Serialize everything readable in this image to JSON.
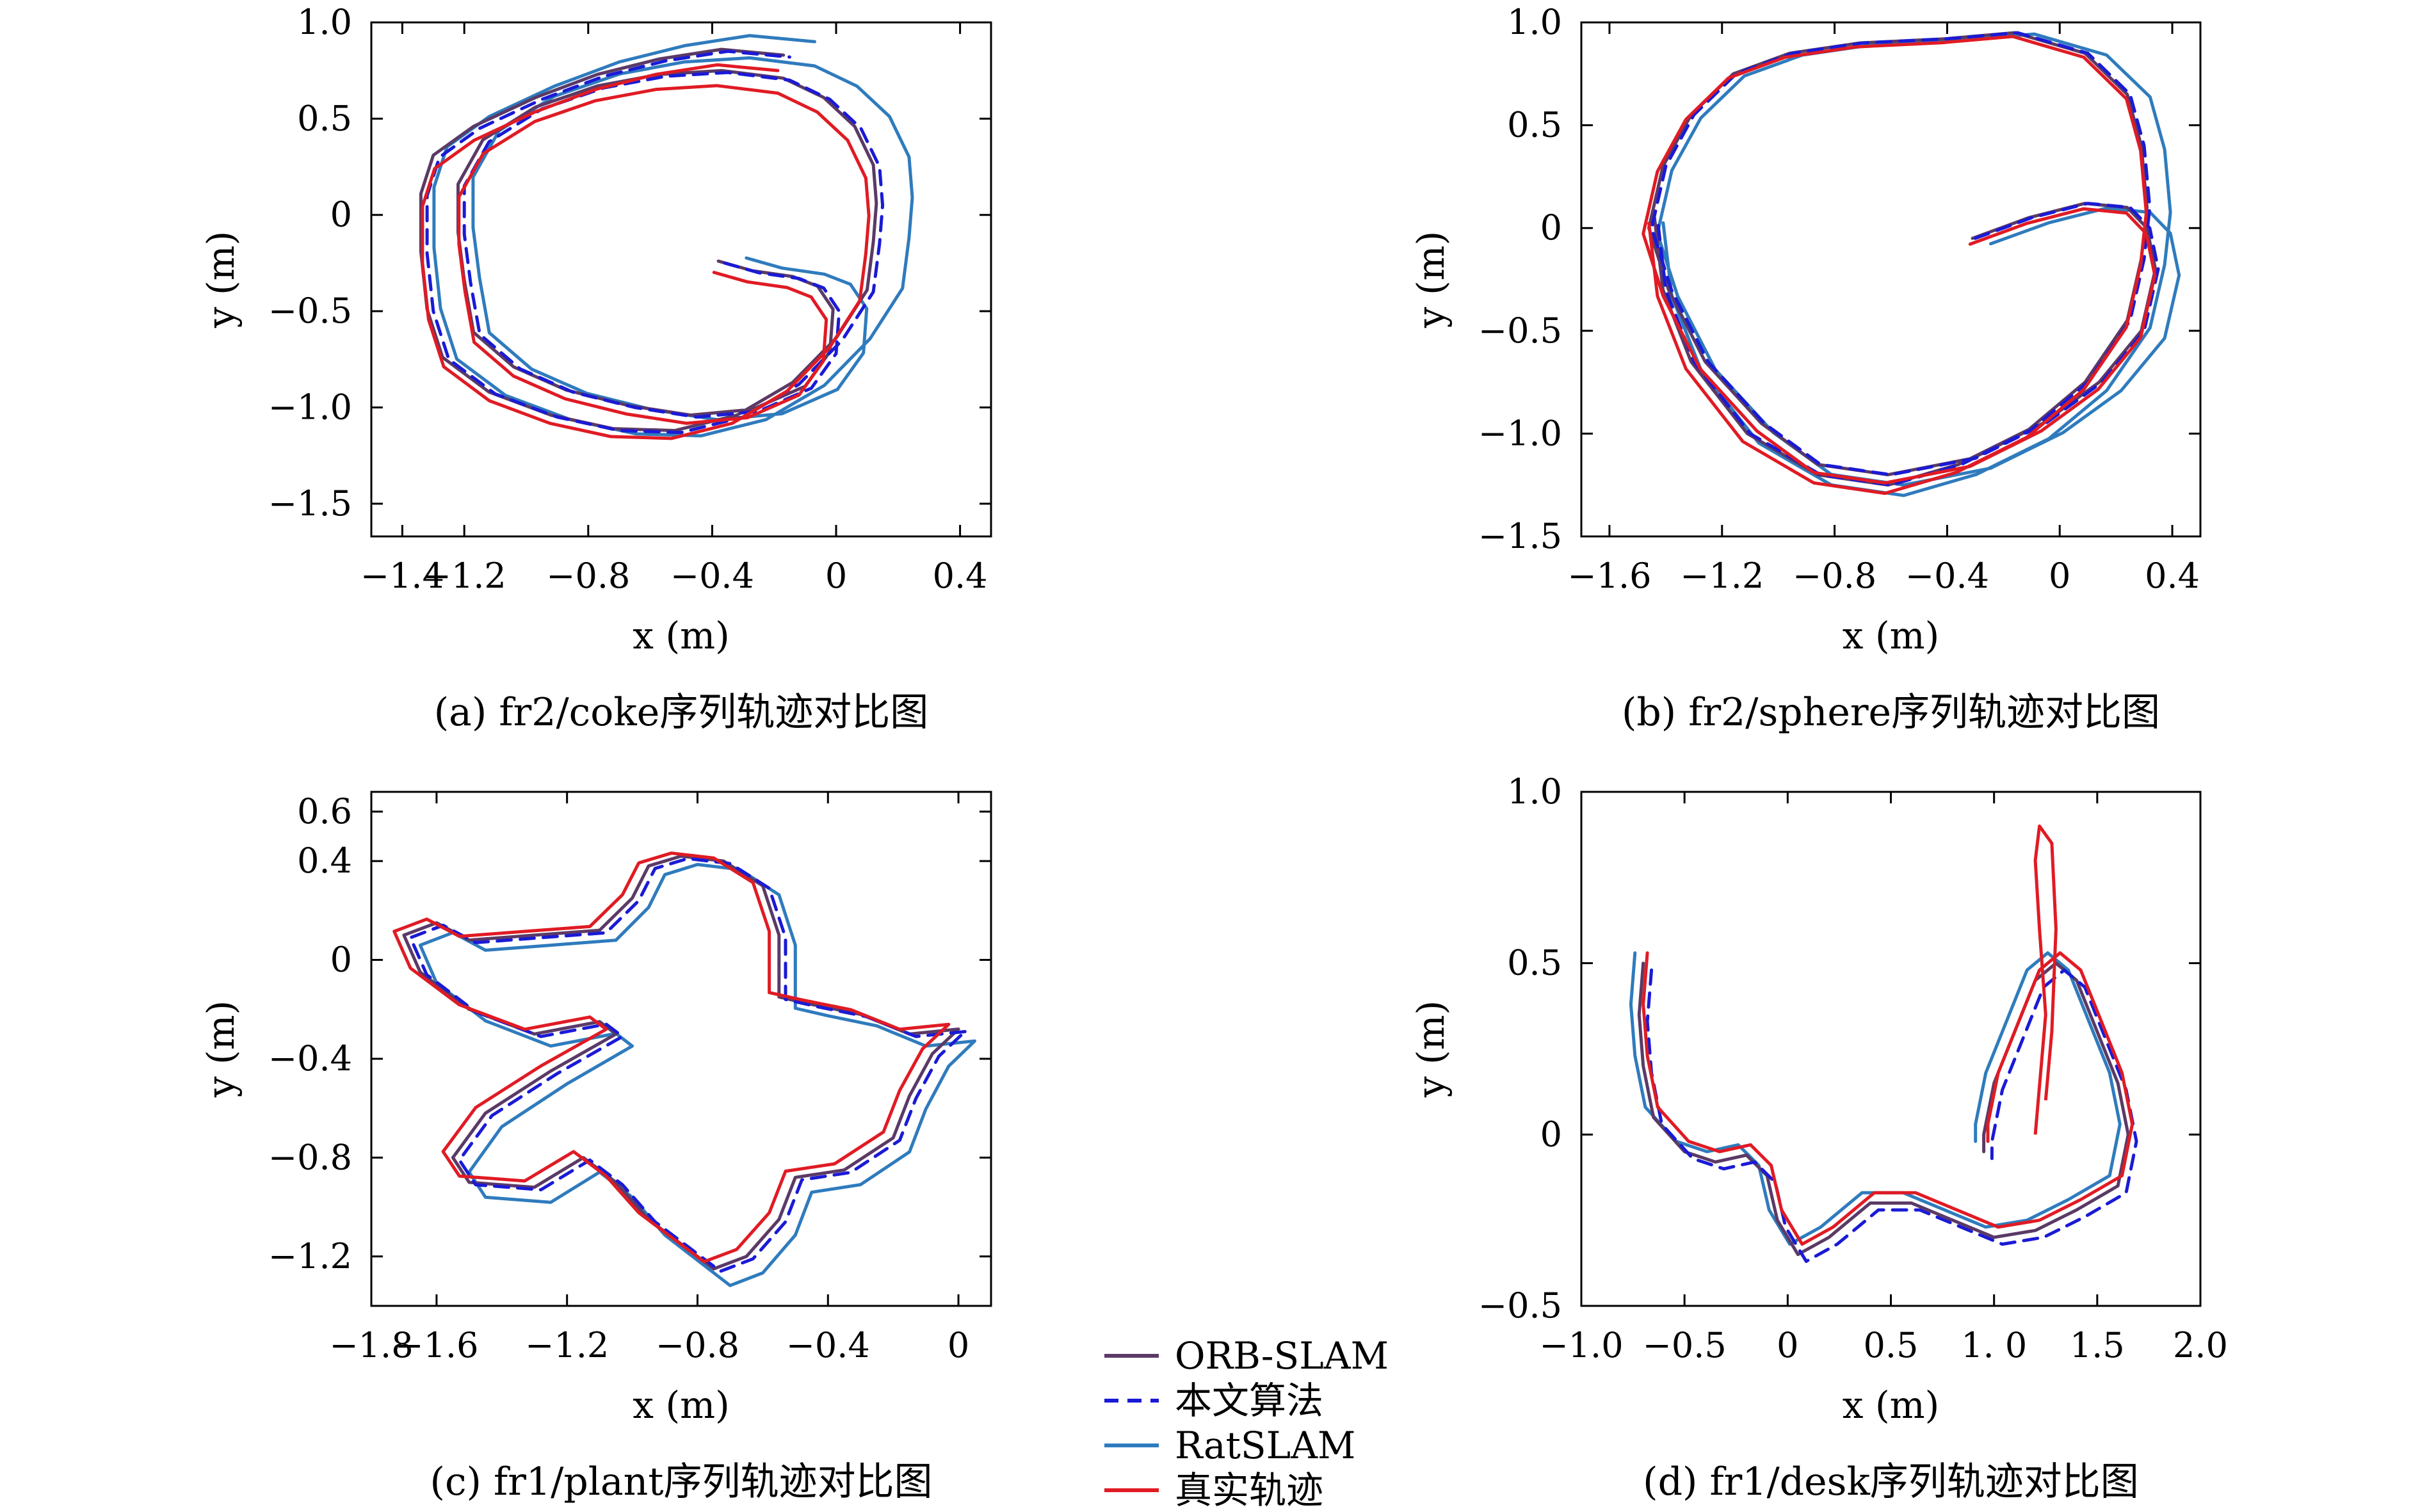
{
  "figure_title": "",
  "legend": [
    {
      "name": "ORB-SLAM",
      "color": "#5b3a66",
      "dash": "solid"
    },
    {
      "name": "本文算法",
      "color": "#1a1ad6",
      "dash": "dashed"
    },
    {
      "name": "RatSLAM",
      "color": "#2f7bbd",
      "dash": "solid"
    },
    {
      "name": "真实轨迹",
      "color": "#e01b24",
      "dash": "solid"
    }
  ],
  "chart_data": [
    {
      "type": "line",
      "caption": "(a)  fr2/coke序列轨迹对比图",
      "xlabel": "x (m)",
      "ylabel": "y (m)",
      "xlim": [
        -1.5,
        0.5
      ],
      "ylim": [
        -1.67,
        1.0
      ],
      "xticks": [
        -1.4,
        -1.2,
        -0.8,
        -0.4,
        0,
        0.4
      ],
      "xtick_labels": [
        "−1.4",
        "−1.2",
        "−0.8",
        "−0.4",
        "0",
        "0.4"
      ],
      "yticks": [
        1.0,
        0.5,
        0,
        -0.5,
        -1.0,
        -1.5
      ],
      "ytick_labels": [
        "1.0",
        "0.5",
        "0",
        "−0.5",
        "−1.0",
        "−1.5"
      ],
      "base_path": [
        [
          -0.36,
          -0.25
        ],
        [
          -0.25,
          -0.3
        ],
        [
          -0.12,
          -0.33
        ],
        [
          -0.04,
          -0.38
        ],
        [
          0.01,
          -0.5
        ],
        [
          0.0,
          -0.72
        ],
        [
          -0.08,
          -0.9
        ],
        [
          -0.25,
          -1.02
        ],
        [
          -0.45,
          -1.05
        ],
        [
          -0.65,
          -1.0
        ],
        [
          -0.85,
          -0.92
        ],
        [
          -1.02,
          -0.8
        ],
        [
          -1.15,
          -0.62
        ],
        [
          -1.18,
          -0.35
        ],
        [
          -1.2,
          -0.1
        ],
        [
          -1.2,
          0.15
        ],
        [
          -1.12,
          0.38
        ],
        [
          -0.95,
          0.55
        ],
        [
          -0.75,
          0.66
        ],
        [
          -0.55,
          0.72
        ],
        [
          -0.35,
          0.74
        ],
        [
          -0.15,
          0.7
        ],
        [
          -0.02,
          0.6
        ],
        [
          0.08,
          0.45
        ],
        [
          0.14,
          0.25
        ],
        [
          0.15,
          0.05
        ],
        [
          0.14,
          -0.15
        ],
        [
          0.12,
          -0.4
        ],
        [
          0.02,
          -0.65
        ],
        [
          -0.12,
          -0.88
        ],
        [
          -0.3,
          -1.05
        ],
        [
          -0.5,
          -1.13
        ],
        [
          -0.7,
          -1.12
        ],
        [
          -0.9,
          -1.05
        ],
        [
          -1.1,
          -0.93
        ],
        [
          -1.25,
          -0.75
        ],
        [
          -1.3,
          -0.5
        ],
        [
          -1.32,
          -0.2
        ],
        [
          -1.32,
          0.1
        ],
        [
          -1.28,
          0.3
        ],
        [
          -1.15,
          0.45
        ],
        [
          -0.95,
          0.6
        ],
        [
          -0.75,
          0.72
        ],
        [
          -0.55,
          0.8
        ],
        [
          -0.35,
          0.85
        ],
        [
          -0.15,
          0.82
        ]
      ],
      "series": [
        {
          "name": "ORB-SLAM",
          "dx": -0.02,
          "dy": 0.01,
          "sx": 1.0,
          "sy": 1.0
        },
        {
          "name": "本文算法",
          "dx": 0.0,
          "dy": 0.0,
          "sx": 1.0,
          "sy": 1.0
        },
        {
          "name": "RatSLAM",
          "dx": 0.06,
          "dy": 0.03,
          "sx": 1.05,
          "sy": 1.05
        },
        {
          "name": "真实轨迹",
          "dx": -0.03,
          "dy": -0.05,
          "sx": 0.98,
          "sy": 0.98
        }
      ]
    },
    {
      "type": "line",
      "caption": "(b)  fr2/sphere序列轨迹对比图",
      "xlabel": "x (m)",
      "ylabel": "y (m)",
      "xlim": [
        -1.7,
        0.5
      ],
      "ylim": [
        -1.5,
        1.0
      ],
      "xticks": [
        -1.6,
        -1.2,
        -0.8,
        -0.4,
        0,
        0.4
      ],
      "xtick_labels": [
        "−1.6",
        "−1.2",
        "−0.8",
        "−0.4",
        "0",
        "0.4"
      ],
      "yticks": [
        1.0,
        0.5,
        0,
        -0.5,
        -1.0,
        -1.5
      ],
      "ytick_labels": [
        "1.0",
        "0.5",
        "0",
        "−0.5",
        "−1.0",
        "−1.5"
      ],
      "base_path": [
        [
          -0.3,
          -0.05
        ],
        [
          -0.1,
          0.05
        ],
        [
          0.1,
          0.12
        ],
        [
          0.25,
          0.1
        ],
        [
          0.32,
          0.0
        ],
        [
          0.35,
          -0.2
        ],
        [
          0.3,
          -0.5
        ],
        [
          0.15,
          -0.75
        ],
        [
          -0.05,
          -0.95
        ],
        [
          -0.3,
          -1.12
        ],
        [
          -0.6,
          -1.2
        ],
        [
          -0.85,
          -1.15
        ],
        [
          -1.05,
          -0.95
        ],
        [
          -1.25,
          -0.65
        ],
        [
          -1.38,
          -0.3
        ],
        [
          -1.45,
          0.0
        ],
        [
          -1.4,
          0.3
        ],
        [
          -1.3,
          0.55
        ],
        [
          -1.15,
          0.75
        ],
        [
          -0.95,
          0.85
        ],
        [
          -0.7,
          0.9
        ],
        [
          -0.4,
          0.92
        ],
        [
          -0.15,
          0.95
        ],
        [
          0.1,
          0.85
        ],
        [
          0.25,
          0.65
        ],
        [
          0.3,
          0.4
        ],
        [
          0.32,
          0.1
        ],
        [
          0.3,
          -0.15
        ],
        [
          0.25,
          -0.45
        ],
        [
          0.1,
          -0.75
        ],
        [
          -0.1,
          -0.98
        ],
        [
          -0.35,
          -1.15
        ],
        [
          -0.6,
          -1.25
        ],
        [
          -0.85,
          -1.2
        ],
        [
          -1.1,
          -1.0
        ],
        [
          -1.3,
          -0.65
        ],
        [
          -1.4,
          -0.3
        ],
        [
          -1.43,
          0.05
        ]
      ],
      "series": [
        {
          "name": "ORB-SLAM",
          "dx": -0.01,
          "dy": 0.0,
          "sx": 1.0,
          "sy": 1.0
        },
        {
          "name": "本文算法",
          "dx": 0.0,
          "dy": 0.0,
          "sx": 1.0,
          "sy": 1.0
        },
        {
          "name": "RatSLAM",
          "dx": 0.05,
          "dy": -0.03,
          "sx": 1.03,
          "sy": 1.02
        },
        {
          "name": "真实轨迹",
          "dx": -0.02,
          "dy": -0.03,
          "sx": 1.01,
          "sy": 1.01
        }
      ]
    },
    {
      "type": "line",
      "caption": "(c)  fr1/plant序列轨迹对比图",
      "xlabel": "x (m)",
      "ylabel": "y (m)",
      "xlim": [
        -1.8,
        0.1
      ],
      "ylim": [
        -1.4,
        0.68
      ],
      "xticks": [
        -1.8,
        -1.6,
        -1.2,
        -0.8,
        -0.4,
        0
      ],
      "xtick_labels": [
        "−1.8",
        "−1.6",
        "−1.2",
        "−0.8",
        "−0.4",
        "0"
      ],
      "yticks": [
        0.6,
        0.4,
        0,
        -0.4,
        -0.8,
        -1.2
      ],
      "ytick_labels": [
        "0.6",
        "0.4",
        "0",
        "−0.4",
        "−0.8",
        "−1.2"
      ],
      "base_path": [
        [
          0.0,
          -0.28
        ],
        [
          -0.15,
          -0.3
        ],
        [
          -0.3,
          -0.22
        ],
        [
          -0.45,
          -0.18
        ],
        [
          -0.55,
          -0.15
        ],
        [
          -0.55,
          0.1
        ],
        [
          -0.6,
          0.3
        ],
        [
          -0.72,
          0.4
        ],
        [
          -0.85,
          0.42
        ],
        [
          -0.95,
          0.38
        ],
        [
          -1.0,
          0.25
        ],
        [
          -1.1,
          0.12
        ],
        [
          -1.3,
          0.1
        ],
        [
          -1.5,
          0.08
        ],
        [
          -1.6,
          0.15
        ],
        [
          -1.7,
          0.1
        ],
        [
          -1.65,
          -0.05
        ],
        [
          -1.5,
          -0.2
        ],
        [
          -1.3,
          -0.3
        ],
        [
          -1.1,
          -0.25
        ],
        [
          -1.05,
          -0.3
        ],
        [
          -1.25,
          -0.45
        ],
        [
          -1.45,
          -0.62
        ],
        [
          -1.55,
          -0.8
        ],
        [
          -1.5,
          -0.9
        ],
        [
          -1.3,
          -0.92
        ],
        [
          -1.15,
          -0.8
        ],
        [
          -1.05,
          -0.9
        ],
        [
          -0.95,
          -1.05
        ],
        [
          -0.85,
          -1.15
        ],
        [
          -0.75,
          -1.25
        ],
        [
          -0.65,
          -1.2
        ],
        [
          -0.55,
          -1.05
        ],
        [
          -0.5,
          -0.88
        ],
        [
          -0.35,
          -0.85
        ],
        [
          -0.2,
          -0.72
        ],
        [
          -0.15,
          -0.55
        ],
        [
          -0.08,
          -0.38
        ],
        [
          0.0,
          -0.28
        ]
      ],
      "series": [
        {
          "name": "ORB-SLAM",
          "dx": 0.0,
          "dy": 0.0,
          "sx": 1.0,
          "sy": 1.0
        },
        {
          "name": "本文算法",
          "dx": 0.02,
          "dy": -0.01,
          "sx": 1.0,
          "sy": 1.0
        },
        {
          "name": "RatSLAM",
          "dx": 0.05,
          "dy": -0.05,
          "sx": 1.0,
          "sy": 1.02
        },
        {
          "name": "真实轨迹",
          "dx": -0.03,
          "dy": 0.02,
          "sx": 1.0,
          "sy": 0.99
        }
      ]
    },
    {
      "type": "line",
      "caption": "(d)  fr1/desk序列轨迹对比图",
      "xlabel": "x (m)",
      "ylabel": "y (m)",
      "xlim": [
        -1.0,
        2.0
      ],
      "ylim": [
        -0.5,
        1.0
      ],
      "xticks": [
        -1.0,
        -0.5,
        0,
        0.5,
        1.0,
        1.5,
        2.0
      ],
      "xtick_labels": [
        "−1.0",
        "−0.5",
        "0",
        "0.5",
        "1. 0",
        "1.5",
        "2.0"
      ],
      "yticks": [
        1.0,
        0.5,
        0,
        -0.5
      ],
      "ytick_labels": [
        "1.0",
        "0.5",
        "0",
        "−0.5"
      ],
      "base_path": [
        [
          -0.7,
          0.5
        ],
        [
          -0.72,
          0.35
        ],
        [
          -0.7,
          0.2
        ],
        [
          -0.65,
          0.05
        ],
        [
          -0.5,
          -0.05
        ],
        [
          -0.35,
          -0.08
        ],
        [
          -0.2,
          -0.06
        ],
        [
          -0.1,
          -0.12
        ],
        [
          -0.05,
          -0.25
        ],
        [
          0.05,
          -0.35
        ],
        [
          0.2,
          -0.3
        ],
        [
          0.4,
          -0.2
        ],
        [
          0.6,
          -0.2
        ],
        [
          0.8,
          -0.25
        ],
        [
          1.0,
          -0.3
        ],
        [
          1.2,
          -0.28
        ],
        [
          1.4,
          -0.22
        ],
        [
          1.6,
          -0.15
        ],
        [
          1.65,
          0.0
        ],
        [
          1.6,
          0.15
        ],
        [
          1.5,
          0.3
        ],
        [
          1.4,
          0.45
        ],
        [
          1.3,
          0.5
        ],
        [
          1.2,
          0.45
        ],
        [
          1.1,
          0.3
        ],
        [
          1.0,
          0.15
        ],
        [
          0.95,
          0.0
        ],
        [
          0.95,
          -0.05
        ]
      ],
      "series": [
        {
          "name": "ORB-SLAM",
          "dx": 0.0,
          "dy": 0.0,
          "sx": 1.0,
          "sy": 1.0
        },
        {
          "name": "本文算法",
          "dx": 0.04,
          "dy": -0.02,
          "sx": 1.0,
          "sy": 1.0
        },
        {
          "name": "RatSLAM",
          "dx": -0.04,
          "dy": 0.03,
          "sx": 1.0,
          "sy": 1.0
        },
        {
          "name": "真实轨迹",
          "dx": 0.02,
          "dy": 0.03,
          "sx": 1.0,
          "sy": 1.0
        }
      ],
      "extra_true_spike": [
        [
          1.2,
          0.0
        ],
        [
          1.25,
          0.35
        ],
        [
          1.22,
          0.6
        ],
        [
          1.2,
          0.8
        ],
        [
          1.22,
          0.9
        ],
        [
          1.28,
          0.85
        ],
        [
          1.3,
          0.6
        ],
        [
          1.28,
          0.3
        ],
        [
          1.25,
          0.1
        ]
      ]
    }
  ]
}
